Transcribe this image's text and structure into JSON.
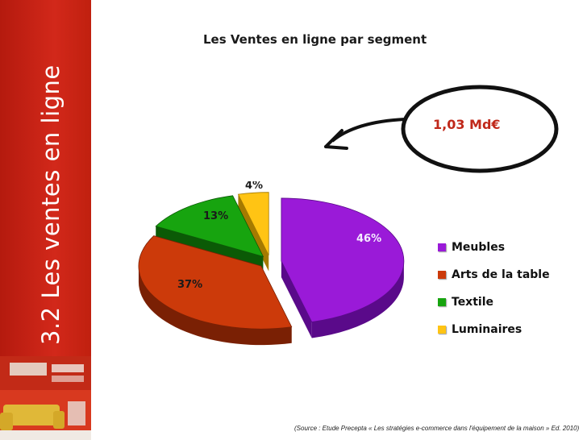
{
  "slide": {
    "section_title": "3.2  Les ventes en ligne",
    "source_note": "(Source : Etude Precepta « Les stratégies e-commerce dans l'équipement de la maison » Ed. 2010)",
    "callout_value": "1,03 Md€"
  },
  "colors": {
    "sidebar": "#c8231a",
    "callout_text": "#c0281a"
  },
  "chart_data": {
    "type": "pie",
    "title": "Les Ventes en ligne par segment",
    "legend_position": "right",
    "slices": [
      {
        "label": "Meubles",
        "value": 46,
        "display": "46%",
        "color": "#9a1ad8",
        "dark": "#5a0a8a"
      },
      {
        "label": "Arts de la table",
        "value": 37,
        "display": "37%",
        "color": "#cc3a0a",
        "dark": "#7a2004"
      },
      {
        "label": "Textile",
        "value": 13,
        "display": "13%",
        "color": "#17a40f",
        "dark": "#0b5a06"
      },
      {
        "label": "Luminaires",
        "value": 4,
        "display": "4%",
        "color": "#ffc414",
        "dark": "#a57a00"
      }
    ]
  }
}
